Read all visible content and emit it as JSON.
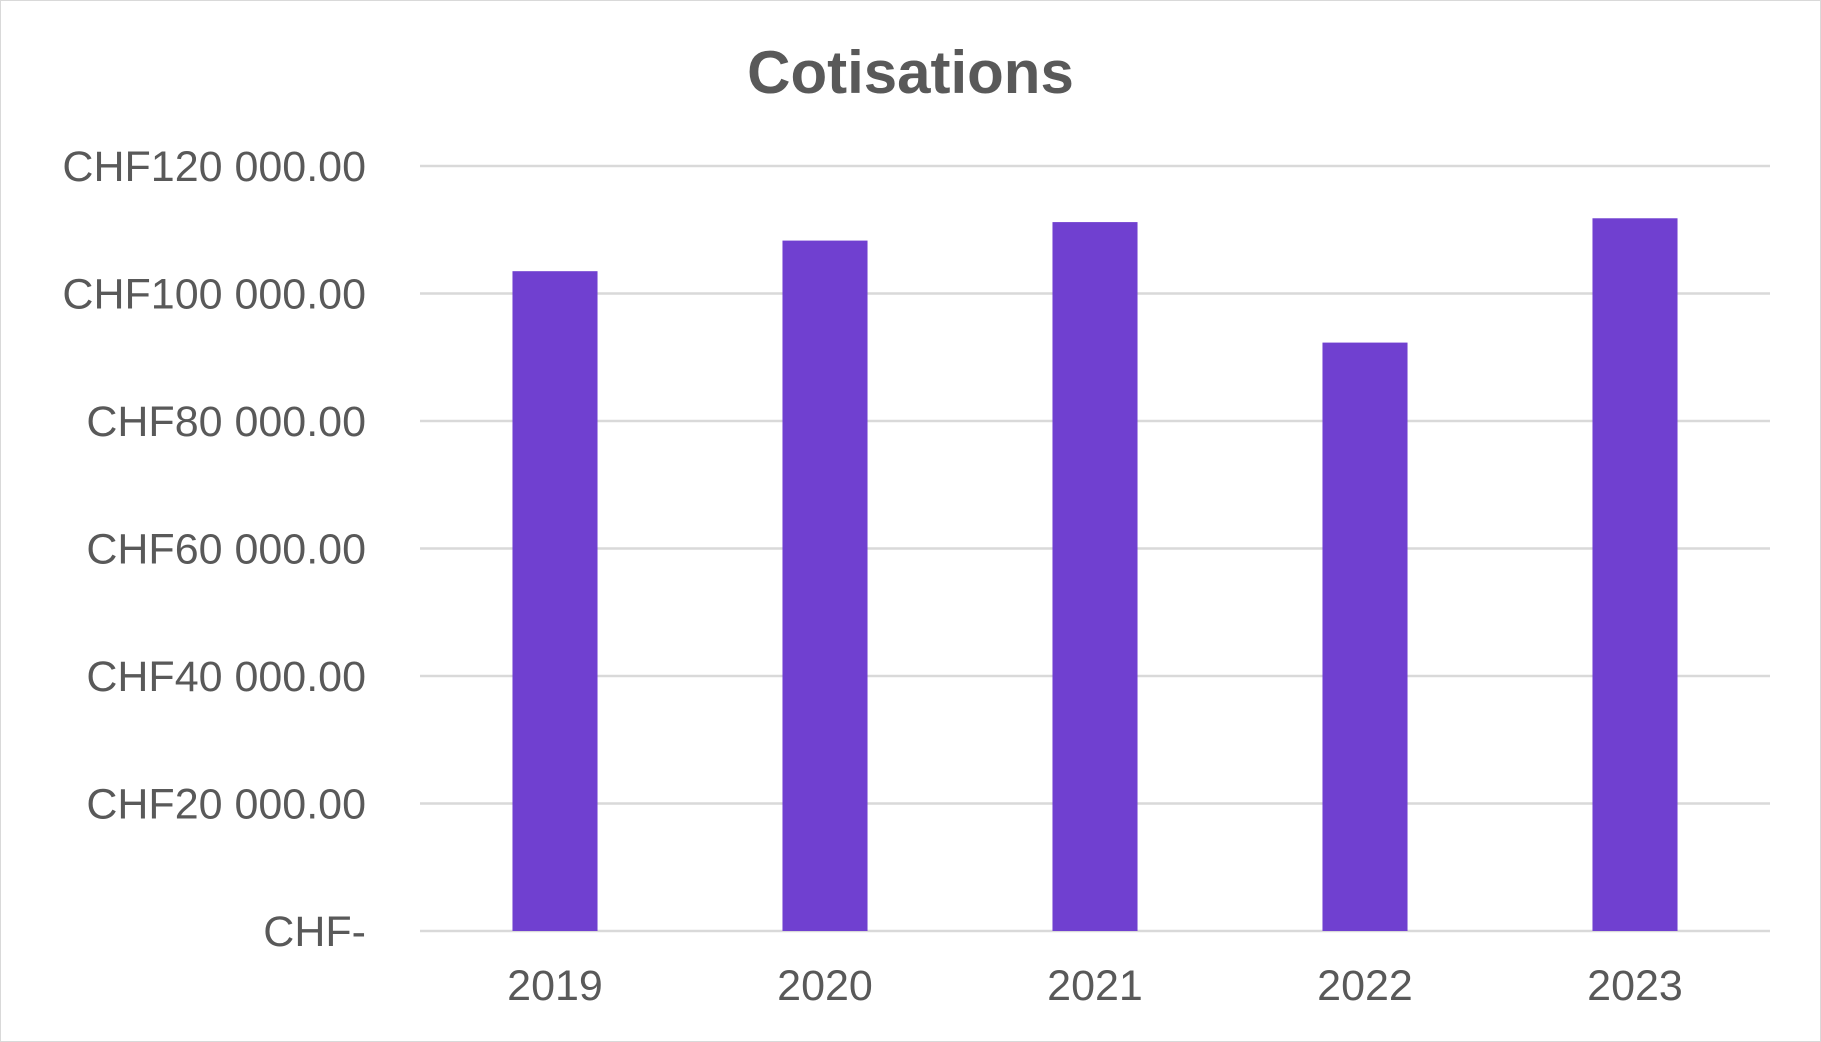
{
  "chart_data": {
    "type": "bar",
    "title": "Cotisations",
    "xlabel": "",
    "ylabel": "",
    "categories": [
      "2019",
      "2020",
      "2021",
      "2022",
      "2023"
    ],
    "series": [
      {
        "values": [
          103500,
          108300,
          111200,
          92300,
          111800
        ],
        "color": "#7040D0"
      }
    ],
    "ylim": [
      0,
      120000
    ],
    "y_ticks": [
      0,
      20000,
      40000,
      60000,
      80000,
      100000,
      120000
    ],
    "y_tick_labels": [
      "CHF-",
      "CHF20 000.00",
      "CHF40 000.00",
      "CHF60 000.00",
      "CHF80 000.00",
      "CHF100 000.00",
      "CHF120 000.00"
    ],
    "grid": true,
    "legend": "none",
    "colors": {
      "gridline": "#d9d9d9",
      "text": "#595959"
    }
  }
}
